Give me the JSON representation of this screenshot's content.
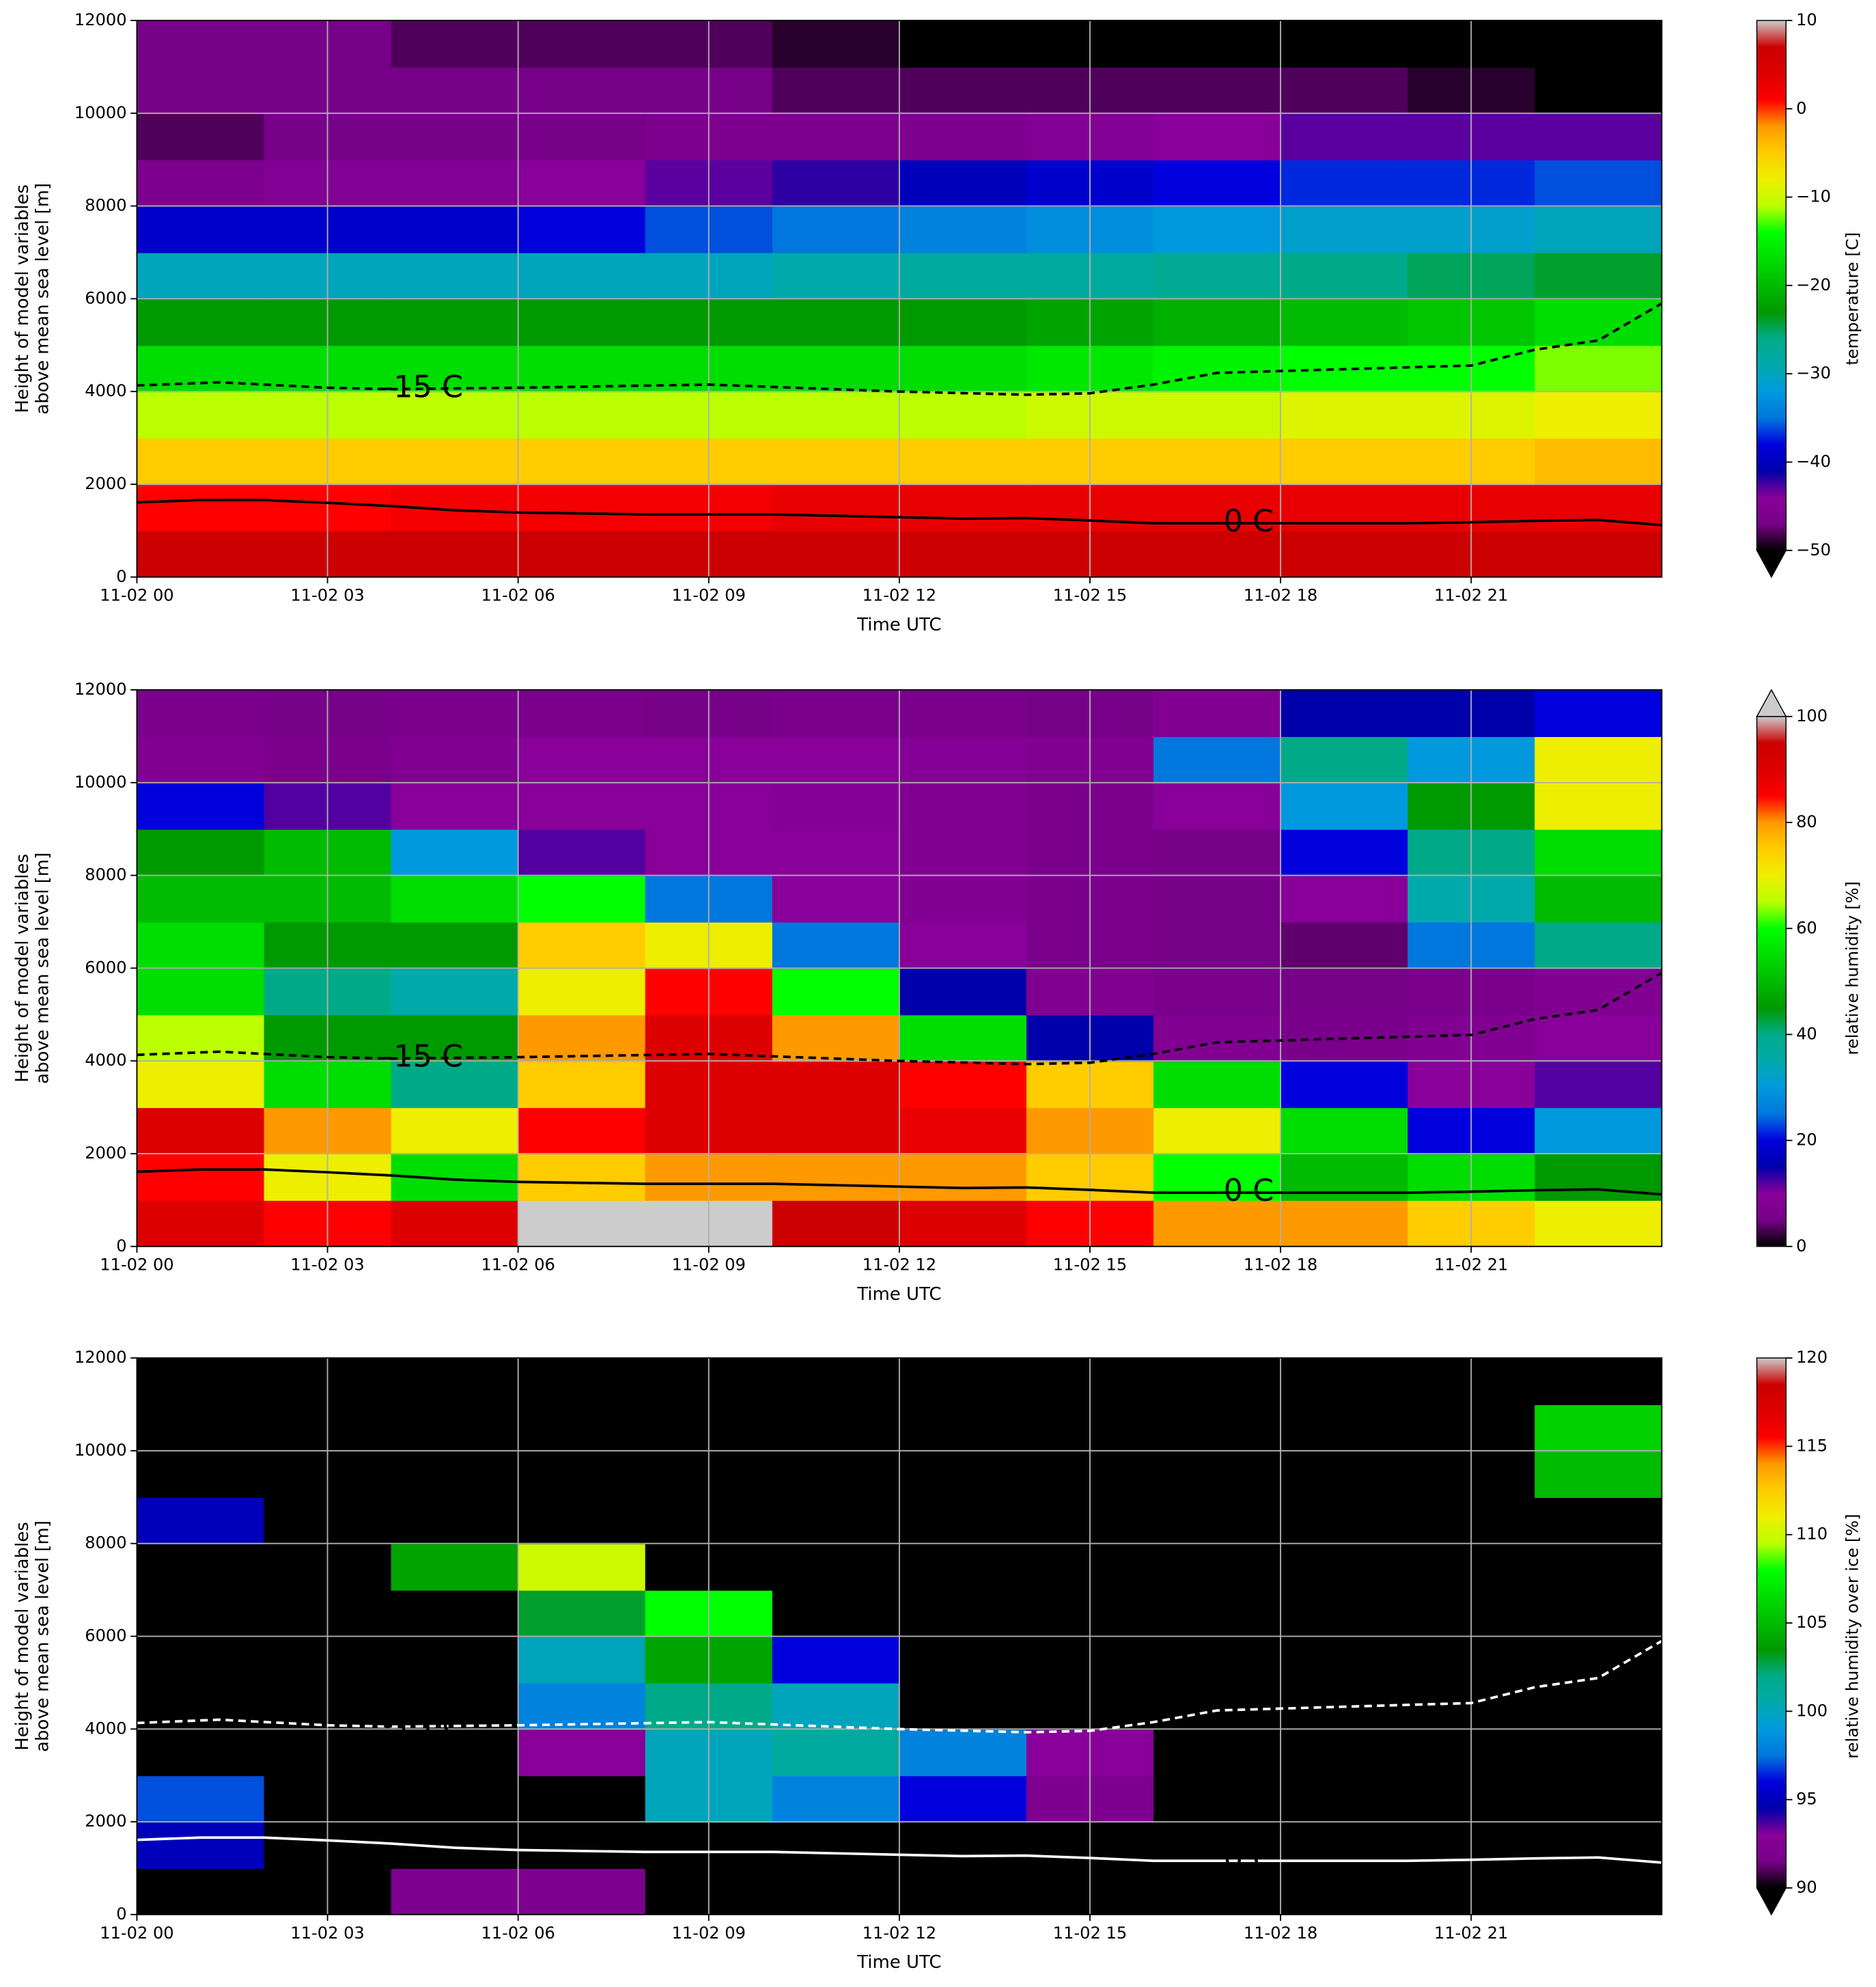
{
  "chart_data": [
    {
      "type": "heatmap",
      "xlabel": "Time UTC",
      "ylabel": [
        "Height of model variables",
        "above mean sea level [m]"
      ],
      "xlim": [
        0,
        24
      ],
      "ylim": [
        0,
        12000
      ],
      "xticks": [
        {
          "value": 0,
          "label": "11-02 00"
        },
        {
          "value": 3,
          "label": "11-02 03"
        },
        {
          "value": 6,
          "label": "11-02 06"
        },
        {
          "value": 9,
          "label": "11-02 09"
        },
        {
          "value": 12,
          "label": "11-02 12"
        },
        {
          "value": 15,
          "label": "11-02 15"
        },
        {
          "value": 18,
          "label": "11-02 18"
        },
        {
          "value": 21,
          "label": "11-02 21"
        }
      ],
      "yticks": [
        0,
        2000,
        4000,
        6000,
        8000,
        10000,
        12000
      ],
      "grid": true,
      "x": [
        1,
        3,
        5,
        7,
        9,
        11,
        13,
        15,
        17,
        19,
        21,
        23
      ],
      "y": [
        500,
        1500,
        2500,
        3500,
        4500,
        5500,
        6500,
        7500,
        8500,
        9500,
        10500,
        11500
      ],
      "values": [
        [
          7,
          7,
          7,
          7,
          7,
          7,
          7,
          7,
          7,
          7,
          7,
          7
        ],
        [
          1,
          1,
          2,
          2,
          2,
          3,
          3,
          3,
          3,
          3,
          3,
          3
        ],
        [
          -5,
          -5,
          -5,
          -5,
          -5,
          -5,
          -5,
          -5,
          -5,
          -5,
          -5,
          -4
        ],
        [
          -11,
          -11,
          -11,
          -11,
          -11,
          -11,
          -11,
          -10,
          -10,
          -9,
          -9,
          -8
        ],
        [
          -17,
          -17,
          -17,
          -17,
          -17,
          -17,
          -17,
          -16,
          -15,
          -14,
          -14,
          -12
        ],
        [
          -23,
          -23,
          -23,
          -23,
          -23,
          -23,
          -23,
          -22,
          -21,
          -20,
          -19,
          -17
        ],
        [
          -30,
          -30,
          -30,
          -30,
          -30,
          -29,
          -28,
          -28,
          -27,
          -26,
          -25,
          -24
        ],
        [
          -39,
          -39,
          -39,
          -38,
          -36,
          -35,
          -34,
          -33,
          -32,
          -31,
          -31,
          -30
        ],
        [
          -46,
          -45,
          -45,
          -44,
          -43,
          -42,
          -40,
          -39,
          -38,
          -37,
          -37,
          -36
        ],
        [
          -48,
          -47,
          -47,
          -47,
          -46,
          -46,
          -46,
          -45,
          -44,
          -43,
          -43,
          -43
        ],
        [
          -47,
          -47,
          -47,
          -47,
          -47,
          -48,
          -48,
          -48,
          -48,
          -48,
          -49,
          -50
        ],
        [
          -47,
          -47,
          -48,
          -48,
          -48,
          -49,
          -50,
          -51,
          -52,
          -53,
          -53,
          -53
        ]
      ],
      "colorbar": {
        "label": "temperature [C]",
        "lim": [
          -50,
          10
        ],
        "ticks": [
          {
            "value": 10,
            "label": "10"
          },
          {
            "value": 0,
            "label": "0"
          },
          {
            "value": -10,
            "label": "−10"
          },
          {
            "value": -20,
            "label": "−20"
          },
          {
            "value": -30,
            "label": "−30"
          },
          {
            "value": -40,
            "label": "−40"
          },
          {
            "value": -50,
            "label": "−50"
          }
        ],
        "extend": "min"
      },
      "contours": [
        {
          "label": "-15 C",
          "color": "#000000",
          "dashed": true,
          "x": [
            0,
            1.3,
            3,
            4,
            6,
            9,
            12,
            14,
            15,
            16,
            17,
            20,
            21,
            22,
            23,
            24
          ],
          "y": [
            4130,
            4200,
            4080,
            4050,
            4080,
            4150,
            4000,
            3930,
            3960,
            4150,
            4400,
            4520,
            4560,
            4900,
            5100,
            5900
          ]
        },
        {
          "label": "0 C",
          "color": "#000000",
          "dashed": false,
          "x": [
            0,
            1,
            2,
            3,
            4,
            5,
            6,
            8,
            10,
            12,
            13,
            14,
            15,
            16,
            17,
            18,
            20,
            21,
            22,
            23,
            24
          ],
          "y": [
            1610,
            1660,
            1660,
            1600,
            1530,
            1440,
            1390,
            1350,
            1350,
            1290,
            1260,
            1270,
            1220,
            1160,
            1160,
            1160,
            1160,
            1180,
            1210,
            1230,
            1120
          ]
        }
      ]
    },
    {
      "type": "heatmap",
      "xlabel": "Time UTC",
      "ylabel": [
        "Height of model variables",
        "above mean sea level [m]"
      ],
      "xlim": [
        0,
        24
      ],
      "ylim": [
        0,
        12000
      ],
      "xticks": [
        {
          "value": 0,
          "label": "11-02 00"
        },
        {
          "value": 3,
          "label": "11-02 03"
        },
        {
          "value": 6,
          "label": "11-02 06"
        },
        {
          "value": 9,
          "label": "11-02 09"
        },
        {
          "value": 12,
          "label": "11-02 12"
        },
        {
          "value": 15,
          "label": "11-02 15"
        },
        {
          "value": 18,
          "label": "11-02 18"
        },
        {
          "value": 21,
          "label": "11-02 21"
        }
      ],
      "yticks": [
        0,
        2000,
        4000,
        6000,
        8000,
        10000,
        12000
      ],
      "grid": true,
      "x": [
        1,
        3,
        5,
        7,
        9,
        11,
        13,
        15,
        17,
        19,
        21,
        23
      ],
      "y": [
        500,
        1500,
        2500,
        3500,
        4500,
        5500,
        6500,
        7500,
        8500,
        9500,
        10500,
        11500
      ],
      "values": [
        [
          90,
          85,
          90,
          100,
          100,
          95,
          90,
          85,
          80,
          80,
          75,
          70
        ],
        [
          85,
          70,
          55,
          75,
          80,
          80,
          80,
          75,
          60,
          50,
          55,
          45
        ],
        [
          90,
          80,
          70,
          85,
          90,
          90,
          88,
          80,
          70,
          55,
          20,
          30
        ],
        [
          70,
          55,
          40,
          75,
          90,
          90,
          85,
          75,
          55,
          20,
          10,
          12
        ],
        [
          65,
          45,
          45,
          80,
          90,
          80,
          55,
          15,
          8,
          6,
          8,
          10
        ],
        [
          55,
          40,
          35,
          70,
          85,
          60,
          15,
          8,
          6,
          5,
          6,
          8
        ],
        [
          55,
          45,
          45,
          75,
          70,
          25,
          10,
          6,
          5,
          4,
          25,
          40
        ],
        [
          50,
          50,
          55,
          60,
          25,
          10,
          8,
          6,
          5,
          10,
          35,
          50
        ],
        [
          45,
          50,
          30,
          12,
          10,
          10,
          8,
          6,
          5,
          20,
          40,
          55
        ],
        [
          20,
          12,
          10,
          10,
          10,
          9,
          8,
          6,
          10,
          30,
          45,
          70
        ],
        [
          8,
          6,
          8,
          10,
          10,
          10,
          9,
          8,
          25,
          40,
          30,
          70
        ],
        [
          6,
          5,
          6,
          6,
          5,
          6,
          6,
          5,
          8,
          15,
          15,
          20
        ]
      ],
      "colorbar": {
        "label": "relative humidity [%]",
        "lim": [
          0,
          100
        ],
        "ticks": [
          0,
          20,
          40,
          60,
          80,
          100
        ],
        "extend": "max"
      },
      "contours": [
        {
          "label": "-15 C",
          "color": "#000000",
          "dashed": true,
          "x": [
            0,
            1.3,
            3,
            4,
            6,
            9,
            12,
            14,
            15,
            16,
            17,
            20,
            21,
            22,
            23,
            24
          ],
          "y": [
            4130,
            4200,
            4080,
            4050,
            4080,
            4150,
            4000,
            3930,
            3960,
            4150,
            4400,
            4520,
            4560,
            4900,
            5100,
            5900
          ]
        },
        {
          "label": "0 C",
          "color": "#000000",
          "dashed": false,
          "x": [
            0,
            1,
            2,
            3,
            4,
            5,
            6,
            8,
            10,
            12,
            13,
            14,
            15,
            16,
            17,
            18,
            20,
            21,
            22,
            23,
            24
          ],
          "y": [
            1610,
            1660,
            1660,
            1600,
            1530,
            1440,
            1390,
            1350,
            1350,
            1290,
            1260,
            1270,
            1220,
            1160,
            1160,
            1160,
            1160,
            1180,
            1210,
            1230,
            1120
          ]
        }
      ]
    },
    {
      "type": "heatmap",
      "xlabel": "Time UTC",
      "ylabel": [
        "Height of model variables",
        "above mean sea level [m]"
      ],
      "xlim": [
        0,
        24
      ],
      "ylim": [
        0,
        12000
      ],
      "xticks": [
        {
          "value": 0,
          "label": "11-02 00"
        },
        {
          "value": 3,
          "label": "11-02 03"
        },
        {
          "value": 6,
          "label": "11-02 06"
        },
        {
          "value": 9,
          "label": "11-02 09"
        },
        {
          "value": 12,
          "label": "11-02 12"
        },
        {
          "value": 15,
          "label": "11-02 15"
        },
        {
          "value": 18,
          "label": "11-02 18"
        },
        {
          "value": 21,
          "label": "11-02 21"
        }
      ],
      "yticks": [
        0,
        2000,
        4000,
        6000,
        8000,
        10000,
        12000
      ],
      "grid": true,
      "x": [
        1,
        3,
        5,
        7,
        9,
        11,
        13,
        15,
        17,
        19,
        21,
        23
      ],
      "y": [
        500,
        1500,
        2500,
        3500,
        4500,
        5500,
        6500,
        7500,
        8500,
        9500,
        10500,
        11500
      ],
      "values": [
        [
          80,
          80,
          92,
          92,
          80,
          80,
          80,
          80,
          80,
          80,
          80,
          80
        ],
        [
          95,
          80,
          80,
          80,
          80,
          80,
          80,
          80,
          80,
          80,
          80,
          80
        ],
        [
          97,
          80,
          80,
          80,
          100,
          98,
          96,
          92,
          80,
          80,
          80,
          80
        ],
        [
          80,
          80,
          80,
          93,
          100,
          101,
          98,
          93,
          80,
          80,
          80,
          80
        ],
        [
          80,
          80,
          80,
          98,
          102,
          100,
          80,
          80,
          80,
          80,
          80,
          80
        ],
        [
          80,
          80,
          80,
          100,
          104,
          96,
          80,
          80,
          80,
          80,
          80,
          80
        ],
        [
          80,
          80,
          80,
          103,
          108,
          80,
          80,
          80,
          80,
          80,
          80,
          80
        ],
        [
          80,
          80,
          104,
          110,
          80,
          80,
          80,
          80,
          80,
          80,
          80,
          80
        ],
        [
          95,
          80,
          80,
          80,
          80,
          80,
          80,
          80,
          80,
          80,
          80,
          80
        ],
        [
          80,
          80,
          80,
          80,
          80,
          80,
          80,
          80,
          80,
          80,
          80,
          105
        ],
        [
          80,
          80,
          80,
          80,
          80,
          80,
          80,
          80,
          80,
          80,
          80,
          106
        ],
        [
          80,
          80,
          80,
          80,
          80,
          80,
          80,
          80,
          80,
          80,
          80,
          80
        ]
      ],
      "colorbar": {
        "label": "relative humidity over ice [%]",
        "lim": [
          90,
          120
        ],
        "ticks": [
          90,
          95,
          100,
          105,
          110,
          115,
          120
        ],
        "extend": "min"
      },
      "contours": [
        {
          "label": "-15 C",
          "color": "#ffffff",
          "dashed": true,
          "x": [
            0,
            1.3,
            3,
            4,
            6,
            9,
            12,
            14,
            15,
            16,
            17,
            20,
            21,
            22,
            23,
            24
          ],
          "y": [
            4130,
            4200,
            4080,
            4050,
            4080,
            4150,
            4000,
            3930,
            3960,
            4150,
            4400,
            4520,
            4560,
            4900,
            5100,
            5900
          ]
        },
        {
          "label": "0 C",
          "color": "#ffffff",
          "dashed": false,
          "x": [
            0,
            1,
            2,
            3,
            4,
            5,
            6,
            8,
            10,
            12,
            13,
            14,
            15,
            16,
            17,
            18,
            20,
            21,
            22,
            23,
            24
          ],
          "y": [
            1610,
            1660,
            1660,
            1600,
            1530,
            1440,
            1390,
            1350,
            1350,
            1290,
            1260,
            1270,
            1220,
            1160,
            1160,
            1160,
            1160,
            1180,
            1210,
            1230,
            1120
          ]
        }
      ]
    }
  ]
}
